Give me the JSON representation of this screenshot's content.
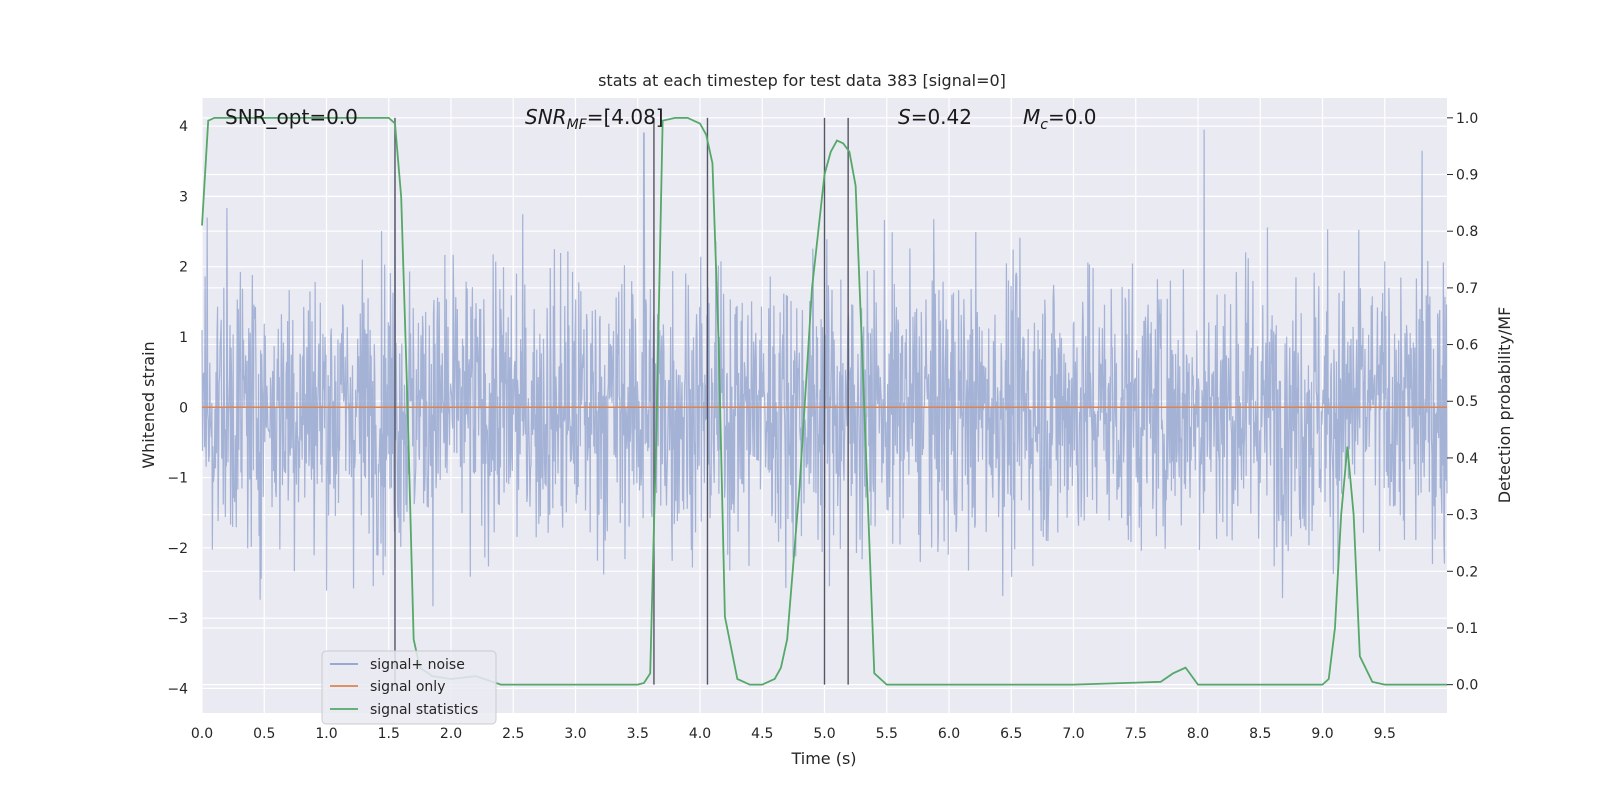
{
  "chart_data": {
    "type": "line",
    "title": "stats at each timestep for test data 383 [signal=0]",
    "xlabel": "Time (s)",
    "ylabel_left": "Whitened strain",
    "ylabel_right": "Detection probability/MF",
    "xlim": [
      0.0,
      10.0
    ],
    "ylim_left": [
      -4.35,
      4.4
    ],
    "ylim_right": [
      -0.05,
      1.035
    ],
    "x_ticks": [
      "0.0",
      "0.5",
      "1.0",
      "1.5",
      "2.0",
      "2.5",
      "3.0",
      "3.5",
      "4.0",
      "4.5",
      "5.0",
      "5.5",
      "6.0",
      "6.5",
      "7.0",
      "7.5",
      "8.0",
      "8.5",
      "9.0",
      "9.5"
    ],
    "y_left_ticks": [
      "−4",
      "−3",
      "−2",
      "−1",
      "0",
      "1",
      "2",
      "3",
      "4"
    ],
    "y_right_ticks": [
      "0.0",
      "0.1",
      "0.2",
      "0.3",
      "0.4",
      "0.5",
      "0.6",
      "0.7",
      "0.8",
      "0.9",
      "1.0"
    ],
    "grid": true,
    "legend_position": "lower-left",
    "annotations": {
      "snr_opt": "SNR_opt=0.0",
      "snr_mf_name": "SNR",
      "snr_mf_sub": "MF",
      "snr_mf_rest": "=[4.08]",
      "s_name": "S",
      "s_rest": "=0.42",
      "mc_name": "M",
      "mc_sub": "c",
      "mc_rest": "=0.0"
    },
    "series": [
      {
        "name": "signal+ noise",
        "color": "#8c9fcc",
        "noise_sigma": 1.0,
        "amplitude_range": [
          -4.0,
          4.0
        ],
        "note_visible_peaks": [
          [
            1.55,
            3.35
          ],
          [
            3.55,
            3.9
          ],
          [
            8.05,
            3.95
          ],
          [
            9.8,
            3.65
          ]
        ]
      },
      {
        "name": "signal only",
        "color": "#dd8452",
        "constant": 0.0
      },
      {
        "name": "signal statistics",
        "color": "#55a868",
        "x": [
          0.0,
          0.05,
          0.1,
          0.5,
          1.0,
          1.5,
          1.55,
          1.6,
          1.65,
          1.7,
          1.75,
          1.85,
          2.0,
          2.2,
          2.4,
          3.0,
          3.5,
          3.55,
          3.6,
          3.65,
          3.7,
          3.8,
          3.9,
          4.0,
          4.05,
          4.1,
          4.15,
          4.2,
          4.3,
          4.4,
          4.5,
          4.6,
          4.65,
          4.7,
          4.8,
          4.9,
          5.0,
          5.05,
          5.1,
          5.15,
          5.2,
          5.25,
          5.3,
          5.4,
          5.5,
          6.0,
          7.0,
          7.7,
          7.8,
          7.9,
          8.0,
          8.5,
          9.0,
          9.05,
          9.1,
          9.15,
          9.2,
          9.25,
          9.3,
          9.4,
          9.5,
          10.0
        ],
        "y": [
          0.81,
          0.995,
          1.0,
          1.0,
          1.0,
          1.0,
          0.99,
          0.86,
          0.5,
          0.08,
          0.03,
          0.015,
          0.01,
          0.015,
          0.0,
          0.0,
          0.0,
          0.003,
          0.02,
          0.45,
          0.995,
          1.0,
          1.0,
          0.99,
          0.97,
          0.92,
          0.6,
          0.12,
          0.01,
          0.0,
          0.0,
          0.01,
          0.03,
          0.08,
          0.35,
          0.7,
          0.9,
          0.94,
          0.96,
          0.955,
          0.94,
          0.88,
          0.6,
          0.02,
          0.0,
          0.0,
          0.0,
          0.005,
          0.02,
          0.03,
          0.0,
          0.0,
          0.0,
          0.01,
          0.1,
          0.3,
          0.42,
          0.3,
          0.05,
          0.005,
          0.0,
          0.0
        ]
      }
    ],
    "vertical_lines_x": [
      1.55,
      3.63,
      4.06,
      5.0,
      5.19
    ]
  }
}
